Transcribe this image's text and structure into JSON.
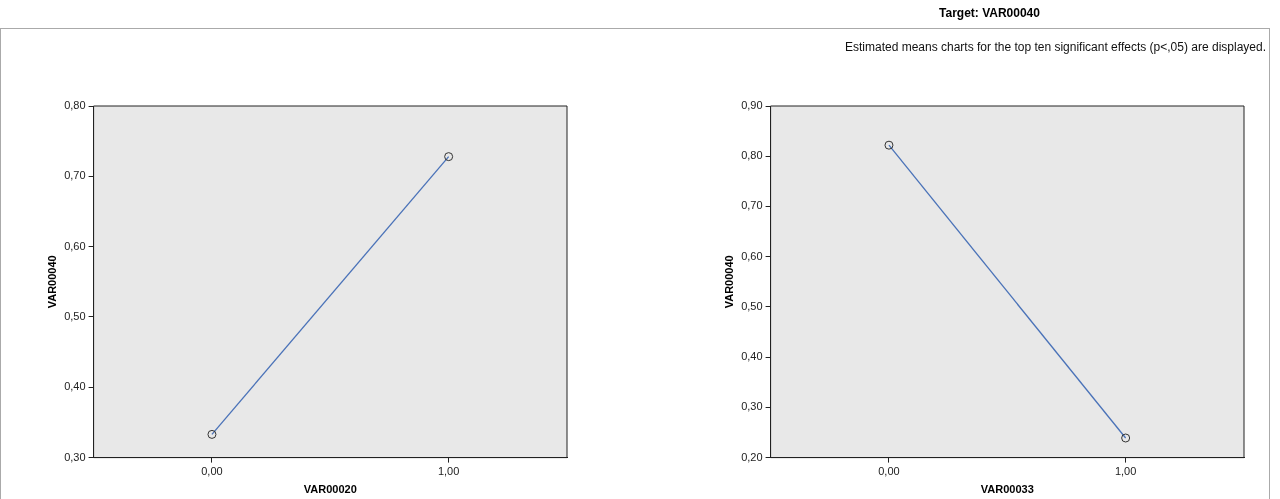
{
  "chart_data": [
    {
      "type": "line",
      "xlabel": "VAR00020",
      "ylabel": "VAR00040",
      "categories": [
        "0,00",
        "1,00"
      ],
      "values": [
        0.333,
        0.728
      ],
      "color": "#4a72b8",
      "marker": "circle",
      "grid": false,
      "ylim": [
        0.3,
        0.8
      ],
      "yticks": [
        {
          "value": 0.3,
          "label": "0,30"
        },
        {
          "value": 0.4,
          "label": "0,40"
        },
        {
          "value": 0.5,
          "label": "0,50"
        },
        {
          "value": 0.6,
          "label": "0,60"
        },
        {
          "value": 0.7,
          "label": "0,70"
        },
        {
          "value": 0.8,
          "label": "0,80"
        }
      ]
    },
    {
      "type": "line",
      "title": "Target: VAR00040",
      "annotations": [
        "Estimated means charts for the top ten significant effects (p<,05) are displayed."
      ],
      "xlabel": "VAR00033",
      "ylabel": "VAR00040",
      "categories": [
        "0,00",
        "1,00"
      ],
      "values": [
        0.822,
        0.239
      ],
      "color": "#4a72b8",
      "marker": "circle",
      "grid": false,
      "ylim": [
        0.2,
        0.9
      ],
      "yticks": [
        {
          "value": 0.2,
          "label": "0,20"
        },
        {
          "value": 0.3,
          "label": "0,30"
        },
        {
          "value": 0.4,
          "label": "0,40"
        },
        {
          "value": 0.5,
          "label": "0,50"
        },
        {
          "value": 0.6,
          "label": "0,60"
        },
        {
          "value": 0.7,
          "label": "0,70"
        },
        {
          "value": 0.8,
          "label": "0,80"
        },
        {
          "value": 0.9,
          "label": "0,90"
        }
      ]
    }
  ]
}
